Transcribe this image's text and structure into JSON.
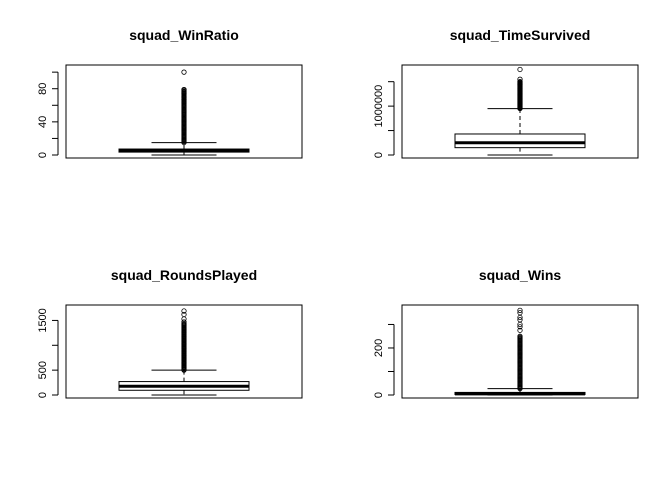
{
  "chart_data": [
    {
      "type": "boxplot",
      "title": "squad_WinRatio",
      "ylim": [
        0,
        105
      ],
      "yticks": [
        0,
        20,
        40,
        60,
        80,
        100
      ],
      "ytick_labels": [
        "0",
        "",
        "40",
        "",
        "80",
        ""
      ],
      "box": {
        "min": 0,
        "q1": 3.5,
        "median": 5.2,
        "q3": 7.2,
        "whisker_high": 15
      },
      "outlier_range": [
        15,
        79
      ],
      "outliers_extra": [
        100,
        79,
        76,
        74,
        70,
        67
      ]
    },
    {
      "type": "boxplot",
      "title": "squad_TimeSurvived",
      "ylim": [
        0,
        1780000
      ],
      "yticks": [
        0,
        500000,
        1000000,
        1500000
      ],
      "ytick_labels": [
        "0",
        "",
        "1000000",
        ""
      ],
      "box": {
        "min": 0,
        "q1": 150000,
        "median": 250000,
        "q3": 430000,
        "whisker_high": 950000
      },
      "outlier_range": [
        950000,
        1500000
      ],
      "outliers_extra": [
        1750000,
        1550000,
        1500000,
        1450000
      ]
    },
    {
      "type": "boxplot",
      "title": "squad_RoundsPlayed",
      "ylim": [
        0,
        1750
      ],
      "yticks": [
        0,
        500,
        1000,
        1500
      ],
      "ytick_labels": [
        "0",
        "500",
        "",
        "1500"
      ],
      "box": {
        "min": 0,
        "q1": 95,
        "median": 175,
        "q3": 270,
        "whisker_high": 500
      },
      "outlier_range": [
        500,
        1440
      ],
      "outliers_extra": [
        1690,
        1620,
        1530,
        1470
      ]
    },
    {
      "type": "boxplot",
      "title": "squad_Wins",
      "ylim": [
        0,
        370
      ],
      "yticks": [
        0,
        100,
        200,
        300
      ],
      "ytick_labels": [
        "0",
        "",
        "200",
        ""
      ],
      "box": {
        "min": 0,
        "q1": 2,
        "median": 5,
        "q3": 11,
        "whisker_high": 27
      },
      "outlier_range": [
        27,
        250
      ],
      "outliers_extra": [
        360,
        350,
        330,
        320,
        300,
        290,
        275
      ]
    }
  ]
}
